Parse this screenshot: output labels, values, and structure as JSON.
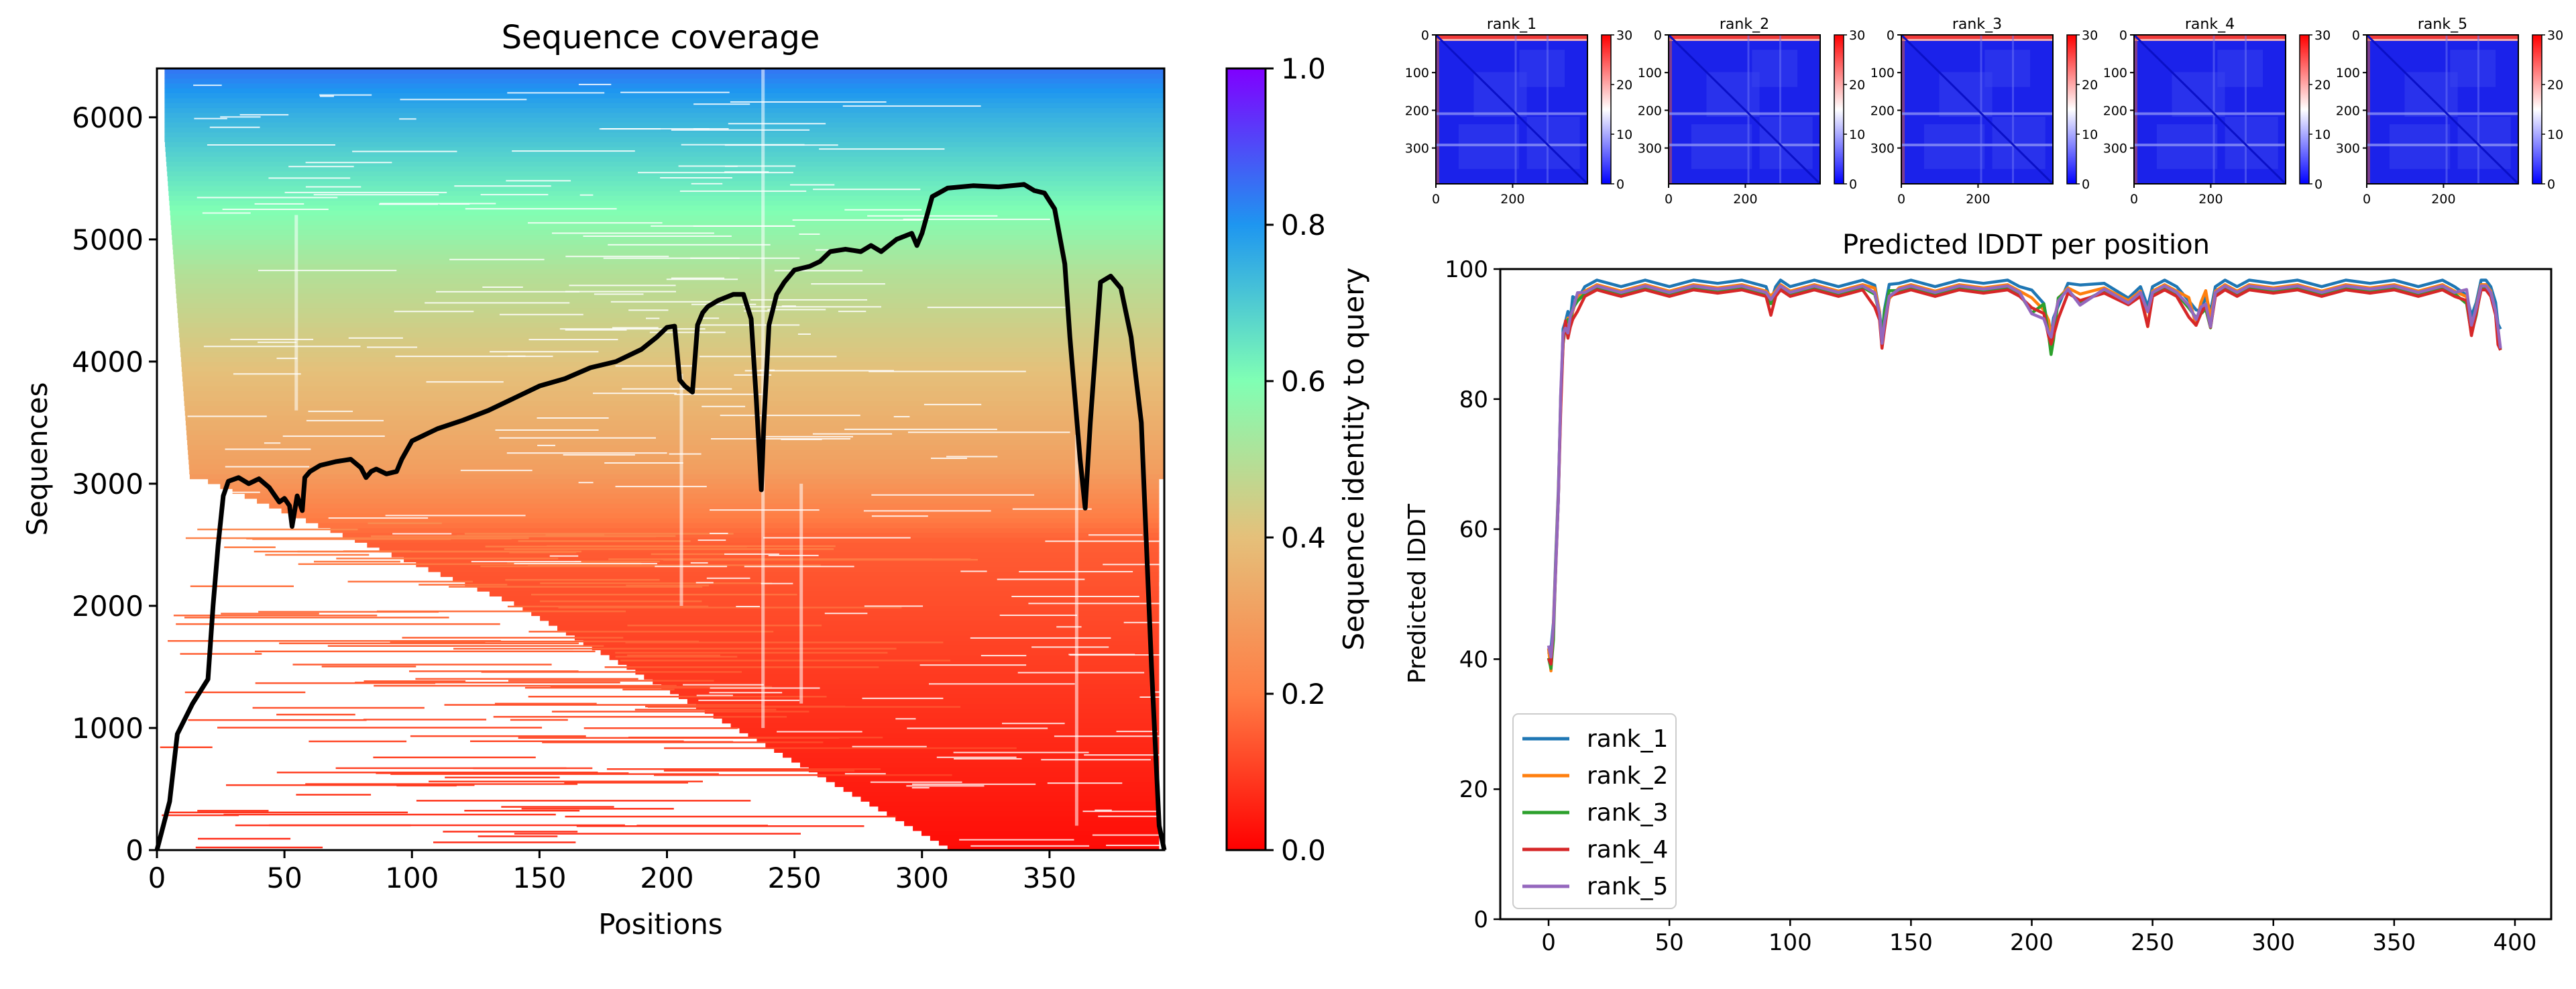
{
  "figure": {
    "coverage": {
      "title": "Sequence coverage",
      "xlabel": "Positions",
      "ylabel": "Sequences",
      "colorbar_label": "Sequence identity to query",
      "x_ticks": [
        "0",
        "50",
        "100",
        "150",
        "200",
        "250",
        "300",
        "350"
      ],
      "y_ticks": [
        "0",
        "1000",
        "2000",
        "3000",
        "4000",
        "5000",
        "6000"
      ],
      "cbar_ticks": [
        "0.0",
        "0.2",
        "0.4",
        "0.6",
        "0.8",
        "1.0"
      ]
    },
    "pae": {
      "panels": [
        {
          "title": "rank_1"
        },
        {
          "title": "rank_2"
        },
        {
          "title": "rank_3"
        },
        {
          "title": "rank_4"
        },
        {
          "title": "rank_5"
        }
      ],
      "y_ticks": [
        "0",
        "100",
        "200",
        "300"
      ],
      "x_ticks": [
        "0",
        "200"
      ],
      "cbar_ticks": [
        "0",
        "10",
        "20",
        "30"
      ]
    },
    "plddt": {
      "title": "Predicted lDDT per position",
      "ylabel": "Predicted lDDT",
      "x_ticks": [
        "0",
        "50",
        "100",
        "150",
        "200",
        "250",
        "300",
        "350",
        "400"
      ],
      "y_ticks": [
        "0",
        "20",
        "40",
        "60",
        "80",
        "100"
      ],
      "legend": [
        "rank_1",
        "rank_2",
        "rank_3",
        "rank_4",
        "rank_5"
      ]
    }
  },
  "chart_data": [
    {
      "type": "heatmap",
      "title": "Sequence coverage",
      "xlabel": "Positions",
      "ylabel": "Sequences",
      "xlim": [
        0,
        395
      ],
      "ylim": [
        0,
        6400
      ],
      "colorbar": {
        "label": "Sequence identity to query",
        "range": [
          0.0,
          1.0
        ],
        "colormap": "rainbow_r"
      },
      "coverage_line": {
        "x": [
          0,
          5,
          8,
          14,
          20,
          22,
          24,
          26,
          28,
          32,
          36,
          40,
          44,
          48,
          50,
          52,
          53,
          55,
          57,
          58,
          60,
          64,
          70,
          76,
          80,
          82,
          84,
          86,
          90,
          94,
          96,
          100,
          110,
          120,
          130,
          140,
          150,
          160,
          170,
          180,
          190,
          196,
          200,
          203,
          205,
          207,
          210,
          212,
          214,
          216,
          220,
          226,
          230,
          233,
          235,
          237,
          238,
          240,
          243,
          246,
          250,
          256,
          260,
          264,
          270,
          276,
          280,
          284,
          290,
          296,
          298,
          300,
          304,
          310,
          320,
          330,
          340,
          344,
          348,
          352,
          356,
          358,
          360,
          362,
          364,
          366,
          370,
          374,
          378,
          382,
          386,
          390,
          393,
          395
        ],
        "y": [
          0,
          400,
          950,
          1200,
          1400,
          2000,
          2500,
          2900,
          3020,
          3050,
          3000,
          3040,
          2970,
          2850,
          2880,
          2820,
          2650,
          2900,
          2780,
          3050,
          3100,
          3150,
          3180,
          3200,
          3130,
          3050,
          3100,
          3120,
          3080,
          3100,
          3200,
          3350,
          3450,
          3520,
          3600,
          3700,
          3800,
          3860,
          3950,
          4000,
          4100,
          4200,
          4280,
          4290,
          3850,
          3800,
          3750,
          4300,
          4400,
          4450,
          4500,
          4550,
          4550,
          4350,
          3700,
          2950,
          3500,
          4300,
          4550,
          4650,
          4750,
          4780,
          4820,
          4900,
          4920,
          4900,
          4950,
          4900,
          5000,
          5050,
          4950,
          5050,
          5350,
          5420,
          5440,
          5430,
          5450,
          5400,
          5380,
          5250,
          4800,
          4200,
          3700,
          3200,
          2800,
          3500,
          4650,
          4700,
          4600,
          4200,
          3500,
          1500,
          200,
          0
        ]
      }
    },
    {
      "type": "heatmap",
      "subtype": "predicted_aligned_error",
      "panels": [
        "rank_1",
        "rank_2",
        "rank_3",
        "rank_4",
        "rank_5"
      ],
      "x_range": [
        0,
        395
      ],
      "y_range": [
        0,
        395
      ],
      "colorbar": {
        "range": [
          0,
          30
        ],
        "colormap": "bwr"
      }
    },
    {
      "type": "line",
      "title": "Predicted lDDT per position",
      "ylabel": "Predicted lDDT",
      "xlabel": "",
      "xlim": [
        -20,
        415
      ],
      "ylim": [
        0,
        100
      ],
      "legend_position": "lower-left",
      "base_profile": {
        "x": [
          0,
          1,
          2,
          3,
          4,
          5,
          6,
          7,
          8,
          9,
          10,
          12,
          15,
          20,
          25,
          30,
          40,
          50,
          60,
          70,
          80,
          90,
          92,
          94,
          96,
          100,
          110,
          120,
          125,
          130,
          135,
          137,
          138,
          139,
          141,
          145,
          150,
          160,
          170,
          180,
          190,
          195,
          200,
          205,
          207,
          208,
          209,
          211,
          215,
          220,
          230,
          240,
          245,
          248,
          250,
          255,
          260,
          265,
          268,
          270,
          272,
          274,
          276,
          280,
          285,
          290,
          300,
          310,
          320,
          330,
          340,
          350,
          360,
          370,
          375,
          380,
          382,
          384,
          386,
          388,
          390,
          392,
          393,
          394
        ],
        "y": [
          42,
          40,
          45,
          55,
          65,
          80,
          90,
          92,
          92,
          93,
          94,
          96,
          97,
          98,
          97.5,
          97,
          98,
          97,
          98,
          97.5,
          98,
          97,
          95,
          97,
          98,
          97,
          98,
          97,
          97.5,
          98,
          96,
          93,
          89,
          93,
          96,
          97.5,
          98,
          97,
          98,
          97.5,
          98,
          97,
          95,
          94,
          91,
          89,
          91,
          95,
          97.5,
          96,
          97.5,
          95,
          97,
          93,
          97,
          98,
          97,
          95,
          92,
          94,
          96,
          93,
          97,
          98,
          97,
          98,
          97.5,
          98,
          97,
          98,
          97.5,
          98,
          97,
          98,
          97,
          96,
          92,
          95,
          98,
          98,
          97,
          94,
          91,
          89
        ]
      },
      "series": [
        {
          "name": "rank_1",
          "color": "#1f77b4",
          "offset": 0.3
        },
        {
          "name": "rank_2",
          "color": "#ff7f0e",
          "offset": -0.4
        },
        {
          "name": "rank_3",
          "color": "#2ca02c",
          "offset": -0.8
        },
        {
          "name": "rank_4",
          "color": "#d62728",
          "offset": -1.2
        },
        {
          "name": "rank_5",
          "color": "#9467bd",
          "offset": -0.6
        }
      ]
    }
  ]
}
